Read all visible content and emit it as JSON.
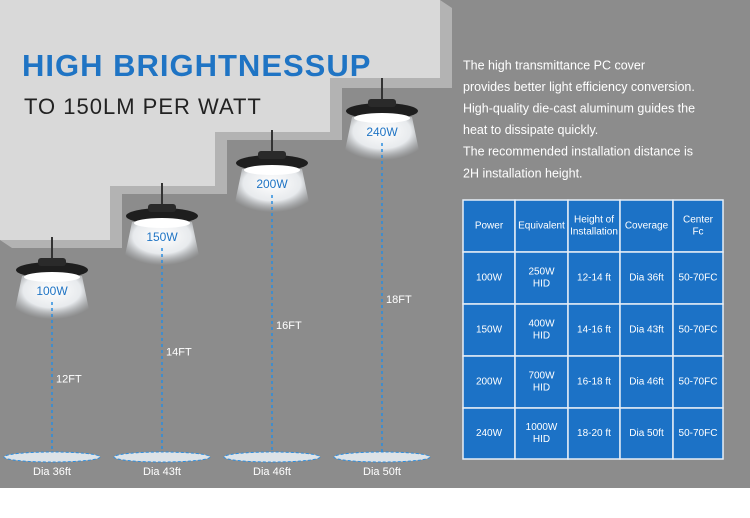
{
  "header": {
    "title": "HIGH BRIGHTNESSUP",
    "subtitle": "TO 150LM PER WATT"
  },
  "lamps": [
    {
      "wattage": "100W",
      "height": "12FT",
      "diameter": "Dia 36ft"
    },
    {
      "wattage": "150W",
      "height": "14FT",
      "diameter": "Dia 43ft"
    },
    {
      "wattage": "200W",
      "height": "16FT",
      "diameter": "Dia 46ft"
    },
    {
      "wattage": "240W",
      "height": "18FT",
      "diameter": "Dia 50ft"
    }
  ],
  "description": [
    "The high transmittance PC cover",
    "provides better light efficiency conversion.",
    "High-quality die-cast aluminum guides the",
    "heat to dissipate quickly.",
    "The recommended installation distance is",
    "2H installation height."
  ],
  "table": {
    "columns": [
      [
        "Power"
      ],
      [
        "Equivalent"
      ],
      [
        "Height of",
        "Installation"
      ],
      [
        "Coverage"
      ],
      [
        "Center",
        "Fc"
      ]
    ],
    "rows": [
      [
        [
          "100W"
        ],
        [
          "250W",
          "HID"
        ],
        [
          "12-14 ft"
        ],
        [
          "Dia 36ft"
        ],
        [
          "50-70FC"
        ]
      ],
      [
        [
          "150W"
        ],
        [
          "400W",
          "HID"
        ],
        [
          "14-16 ft"
        ],
        [
          "Dia 43ft"
        ],
        [
          "50-70FC"
        ]
      ],
      [
        [
          "200W"
        ],
        [
          "700W",
          "HID"
        ],
        [
          "16-18 ft"
        ],
        [
          "Dia 46ft"
        ],
        [
          "50-70FC"
        ]
      ],
      [
        [
          "240W"
        ],
        [
          "1000W",
          "HID"
        ],
        [
          "18-20 ft"
        ],
        [
          "Dia 50ft"
        ],
        [
          "50-70FC"
        ]
      ]
    ]
  }
}
